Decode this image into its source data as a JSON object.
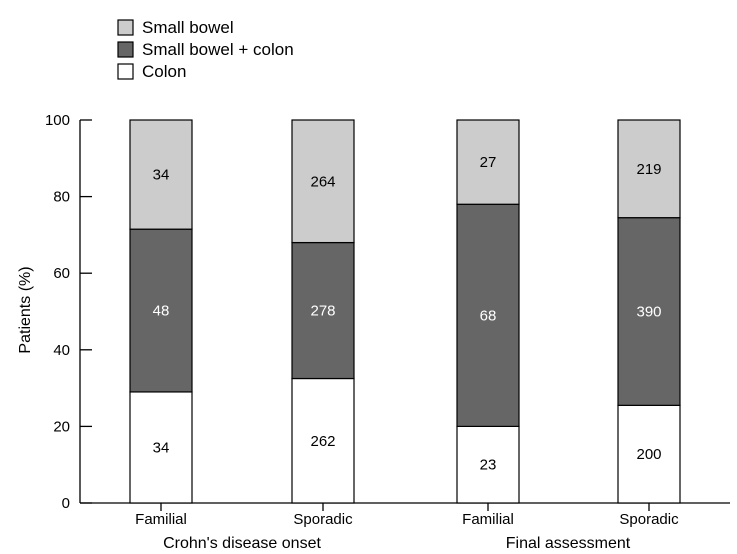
{
  "chart_data": {
    "type": "bar",
    "stacked": true,
    "ylabel": "Patients (%)",
    "ylim": [
      0,
      100
    ],
    "yticks": [
      0,
      20,
      40,
      60,
      80,
      100
    ],
    "groups": [
      {
        "label": "Crohn's disease onset",
        "categories": [
          "Familial",
          "Sporadic"
        ]
      },
      {
        "label": "Final assessment",
        "categories": [
          "Familial",
          "Sporadic"
        ]
      }
    ],
    "legend": {
      "position": "top-left",
      "entries": [
        "Small bowel",
        "Small bowel + colon",
        "Colon"
      ]
    },
    "series_colors": {
      "Colon": "#ffffff",
      "Small bowel + colon": "#666666",
      "Small bowel": "#cccccc"
    },
    "bars": [
      {
        "group": "Crohn's disease onset",
        "category": "Familial",
        "segments": [
          {
            "series": "Colon",
            "percent": 29,
            "count": "34"
          },
          {
            "series": "Small bowel + colon",
            "percent": 42.5,
            "count": "48"
          },
          {
            "series": "Small bowel",
            "percent": 28.5,
            "count": "34"
          }
        ]
      },
      {
        "group": "Crohn's disease onset",
        "category": "Sporadic",
        "segments": [
          {
            "series": "Colon",
            "percent": 32.5,
            "count": "262"
          },
          {
            "series": "Small bowel + colon",
            "percent": 35.5,
            "count": "278"
          },
          {
            "series": "Small bowel",
            "percent": 32,
            "count": "264"
          }
        ]
      },
      {
        "group": "Final assessment",
        "category": "Familial",
        "segments": [
          {
            "series": "Colon",
            "percent": 20,
            "count": "23"
          },
          {
            "series": "Small bowel + colon",
            "percent": 58,
            "count": "68"
          },
          {
            "series": "Small bowel",
            "percent": 22,
            "count": "27"
          }
        ]
      },
      {
        "group": "Final assessment",
        "category": "Sporadic",
        "segments": [
          {
            "series": "Colon",
            "percent": 25.5,
            "count": "200"
          },
          {
            "series": "Small bowel + colon",
            "percent": 49,
            "count": "390"
          },
          {
            "series": "Small bowel",
            "percent": 25.5,
            "count": "219"
          }
        ]
      }
    ]
  }
}
